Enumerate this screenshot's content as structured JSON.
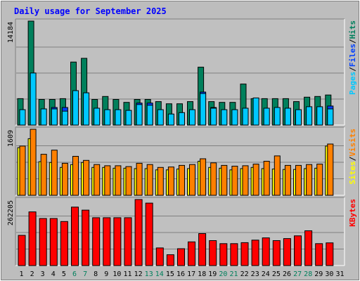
{
  "title": "Daily usage for September 2025",
  "colors": {
    "hits": "#00805c",
    "files": "#0040ff",
    "pages": "#00c8ff",
    "visits": "#ff8000",
    "sites": "#ffff00",
    "kbytes": "#ff0000",
    "title": "#0000ff",
    "weekend_label": "#00805c",
    "weekday_label": "#000000",
    "panel_bg": "#c0c0c0"
  },
  "chart_data": [
    {
      "type": "bar",
      "title": "Daily usage for September 2025",
      "ylabel_parts": [
        "Pages",
        "/",
        "Files",
        "/",
        "Hits"
      ],
      "ymax_label": "14184",
      "ylim": [
        0,
        14184
      ],
      "categories": [
        "1",
        "2",
        "3",
        "4",
        "5",
        "6",
        "7",
        "8",
        "9",
        "10",
        "11",
        "12",
        "13",
        "14",
        "15",
        "16",
        "17",
        "18",
        "19",
        "20",
        "21",
        "22",
        "23",
        "24",
        "25",
        "26",
        "27",
        "28",
        "29",
        "30",
        "31"
      ],
      "weekend_days": [
        "6",
        "7",
        "13",
        "14",
        "20",
        "21",
        "27",
        "28"
      ],
      "series": [
        {
          "name": "Hits",
          "values": [
            3600,
            14184,
            3500,
            3500,
            3600,
            8600,
            9100,
            3500,
            3900,
            3500,
            3100,
            3500,
            3500,
            3200,
            2900,
            2900,
            3200,
            7900,
            3200,
            3100,
            3100,
            5600,
            3600,
            3600,
            3600,
            3600,
            3200,
            3800,
            3900,
            4100,
            0
          ]
        },
        {
          "name": "Files",
          "values": [
            0,
            0,
            0,
            2400,
            2400,
            0,
            0,
            0,
            0,
            0,
            0,
            3000,
            3000,
            0,
            0,
            0,
            0,
            4500,
            2400,
            0,
            0,
            0,
            0,
            0,
            0,
            0,
            0,
            0,
            2400,
            2600,
            0
          ]
        },
        {
          "name": "Pages",
          "values": [
            2100,
            7100,
            2200,
            2200,
            1900,
            4700,
            4400,
            2300,
            2100,
            2100,
            2000,
            2800,
            2700,
            2100,
            1500,
            1700,
            2100,
            4300,
            2300,
            2100,
            2100,
            2300,
            3700,
            2300,
            2400,
            2300,
            2100,
            2500,
            2500,
            2200,
            0
          ]
        }
      ]
    },
    {
      "type": "bar",
      "ylabel_parts": [
        "Sites",
        "/",
        "Visits"
      ],
      "ymax_label": "1609",
      "ylim": [
        0,
        1609
      ],
      "categories": [
        "1",
        "2",
        "3",
        "4",
        "5",
        "6",
        "7",
        "8",
        "9",
        "10",
        "11",
        "12",
        "13",
        "14",
        "15",
        "16",
        "17",
        "18",
        "19",
        "20",
        "21",
        "22",
        "23",
        "24",
        "25",
        "26",
        "27",
        "28",
        "29",
        "30",
        "31"
      ],
      "series": [
        {
          "name": "Visits",
          "values": [
            1200,
            1609,
            1000,
            1100,
            780,
            950,
            850,
            750,
            720,
            720,
            700,
            780,
            750,
            680,
            690,
            730,
            750,
            890,
            790,
            730,
            710,
            720,
            760,
            830,
            960,
            730,
            730,
            750,
            760,
            1250,
            0
          ]
        },
        {
          "name": "Sites",
          "values": [
            1160,
            1380,
            820,
            800,
            680,
            750,
            800,
            680,
            680,
            660,
            660,
            650,
            650,
            620,
            620,
            640,
            650,
            830,
            680,
            660,
            620,
            650,
            680,
            650,
            640,
            630,
            630,
            650,
            660,
            1200,
            0
          ]
        }
      ]
    },
    {
      "type": "bar",
      "ylabel_parts": [
        "KBytes"
      ],
      "ymax_label": "262205",
      "ylim": [
        0,
        262205
      ],
      "categories": [
        "1",
        "2",
        "3",
        "4",
        "5",
        "6",
        "7",
        "8",
        "9",
        "10",
        "11",
        "12",
        "13",
        "14",
        "15",
        "16",
        "17",
        "18",
        "19",
        "20",
        "21",
        "22",
        "23",
        "24",
        "25",
        "26",
        "27",
        "28",
        "29",
        "30",
        "31"
      ],
      "series": [
        {
          "name": "KBytes",
          "values": [
            120000,
            213000,
            187000,
            187000,
            175000,
            232000,
            220000,
            190000,
            190000,
            190000,
            190000,
            262205,
            248000,
            70000,
            43000,
            67000,
            94000,
            127000,
            99000,
            87000,
            87000,
            91000,
            101000,
            110000,
            99000,
            107000,
            118000,
            138000,
            87000,
            90000,
            0
          ]
        }
      ]
    }
  ]
}
